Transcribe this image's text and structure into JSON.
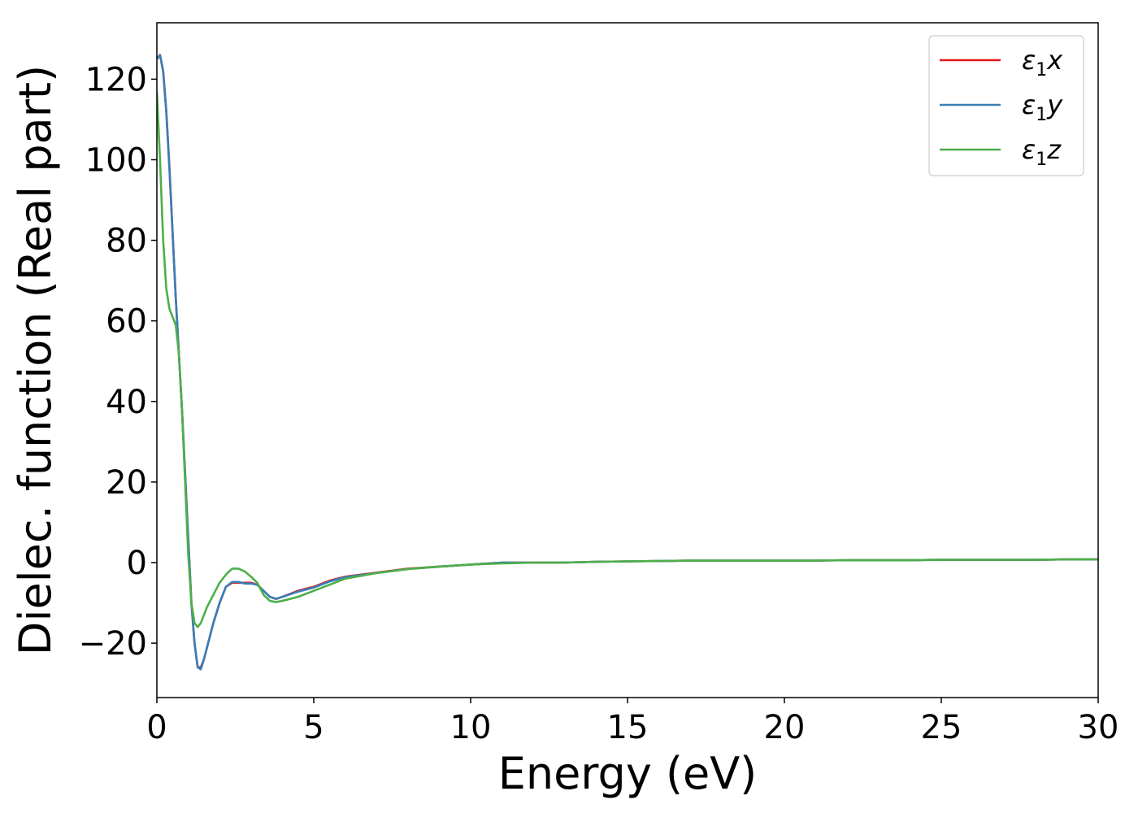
{
  "chart_data": {
    "type": "line",
    "title": "",
    "xlabel": "Energy (eV)",
    "ylabel": "Dielec. function (Real part)",
    "xlim": [
      0,
      30
    ],
    "ylim": [
      -33.5,
      134
    ],
    "xticks": [
      0,
      5,
      10,
      15,
      20,
      25,
      30
    ],
    "yticks": [
      -20,
      0,
      20,
      40,
      60,
      80,
      100,
      120
    ],
    "xtick_labels": [
      "0",
      "5",
      "10",
      "15",
      "20",
      "25",
      "30"
    ],
    "ytick_labels": [
      "−20",
      "0",
      "20",
      "40",
      "60",
      "80",
      "100",
      "120"
    ],
    "grid": false,
    "legend": {
      "placement": "top-right"
    },
    "series": [
      {
        "name": "ε₁x",
        "label_main": "ε",
        "label_sub": "1",
        "label_tail": "x",
        "color": "#e41a1c",
        "x": [
          0,
          0.1,
          0.2,
          0.3,
          0.4,
          0.5,
          0.6,
          0.7,
          0.8,
          0.9,
          1.0,
          1.1,
          1.2,
          1.3,
          1.4,
          1.5,
          1.6,
          1.7,
          1.8,
          2.0,
          2.2,
          2.4,
          2.6,
          2.8,
          3.0,
          3.2,
          3.4,
          3.6,
          3.8,
          4.0,
          4.5,
          5.0,
          5.5,
          6.0,
          7.0,
          8.0,
          9.0,
          10.0,
          11.0,
          12.0,
          13.0,
          14.0,
          15.0,
          16.0,
          17.0,
          18.0,
          19.0,
          20.0,
          21.0,
          22.0,
          23.0,
          24.0,
          25.0,
          26.0,
          27.0,
          28.0,
          29.0,
          30.0
        ],
        "y": [
          125,
          126,
          122,
          112,
          98,
          82,
          66,
          52,
          38,
          22,
          6,
          -10,
          -20,
          -26,
          -26,
          -24,
          -21,
          -18,
          -15,
          -10,
          -6,
          -5,
          -5,
          -5,
          -5,
          -5.5,
          -7,
          -8.5,
          -9,
          -8.5,
          -7,
          -6,
          -4.5,
          -3.5,
          -2.5,
          -1.5,
          -1,
          -0.5,
          0,
          0,
          0,
          0.2,
          0.3,
          0.4,
          0.5,
          0.5,
          0.5,
          0.5,
          0.5,
          0.6,
          0.6,
          0.6,
          0.7,
          0.7,
          0.7,
          0.7,
          0.8,
          0.8
        ]
      },
      {
        "name": "ε₁y",
        "label_main": "ε",
        "label_sub": "1",
        "label_tail": "y",
        "color": "#377eb8",
        "x": [
          0,
          0.1,
          0.2,
          0.3,
          0.4,
          0.5,
          0.6,
          0.7,
          0.8,
          0.9,
          1.0,
          1.1,
          1.2,
          1.3,
          1.4,
          1.5,
          1.6,
          1.7,
          1.8,
          2.0,
          2.2,
          2.4,
          2.6,
          2.8,
          3.0,
          3.2,
          3.4,
          3.6,
          3.8,
          4.0,
          4.5,
          5.0,
          5.5,
          6.0,
          7.0,
          8.0,
          9.0,
          10.0,
          11.0,
          12.0,
          13.0,
          14.0,
          15.0,
          16.0,
          17.0,
          18.0,
          19.0,
          20.0,
          21.0,
          22.0,
          23.0,
          24.0,
          25.0,
          26.0,
          27.0,
          28.0,
          29.0,
          30.0
        ],
        "y": [
          125,
          126,
          122,
          112,
          98,
          82,
          66,
          52,
          38,
          22,
          6,
          -10,
          -20,
          -26,
          -26.5,
          -24,
          -21,
          -18,
          -15,
          -10,
          -6,
          -4.8,
          -4.8,
          -5.2,
          -5.2,
          -5.5,
          -7,
          -8.5,
          -9,
          -8.5,
          -7.2,
          -6.2,
          -4.7,
          -3.6,
          -2.6,
          -1.6,
          -1,
          -0.5,
          0,
          0,
          0,
          0.2,
          0.3,
          0.4,
          0.5,
          0.5,
          0.5,
          0.5,
          0.5,
          0.6,
          0.6,
          0.6,
          0.7,
          0.7,
          0.7,
          0.7,
          0.8,
          0.8
        ]
      },
      {
        "name": "ε₁z",
        "label_main": "ε",
        "label_sub": "1",
        "label_tail": "z",
        "color": "#4daf4a",
        "x": [
          0,
          0.1,
          0.2,
          0.3,
          0.4,
          0.5,
          0.6,
          0.7,
          0.8,
          0.9,
          1.0,
          1.1,
          1.2,
          1.3,
          1.4,
          1.5,
          1.6,
          1.8,
          2.0,
          2.2,
          2.4,
          2.6,
          2.8,
          3.0,
          3.2,
          3.4,
          3.6,
          3.8,
          4.0,
          4.5,
          5.0,
          5.5,
          6.0,
          7.0,
          8.0,
          9.0,
          10.0,
          11.0,
          12.0,
          13.0,
          14.0,
          15.0,
          16.0,
          17.0,
          18.0,
          19.0,
          20.0,
          21.0,
          22.0,
          23.0,
          24.0,
          25.0,
          26.0,
          27.0,
          28.0,
          29.0,
          30.0
        ],
        "y": [
          117,
          100,
          80,
          68,
          63,
          61,
          59,
          52,
          38,
          20,
          2,
          -10,
          -15,
          -16,
          -15,
          -13,
          -11,
          -8,
          -5,
          -3,
          -1.5,
          -1.5,
          -2.2,
          -3.5,
          -5,
          -8,
          -9.5,
          -9.8,
          -9.5,
          -8.5,
          -7,
          -5.5,
          -4,
          -2.6,
          -1.6,
          -1,
          -0.5,
          -0.2,
          0,
          0,
          0.2,
          0.3,
          0.4,
          0.5,
          0.5,
          0.5,
          0.5,
          0.5,
          0.6,
          0.6,
          0.6,
          0.7,
          0.7,
          0.7,
          0.7,
          0.8,
          0.8
        ]
      }
    ]
  }
}
